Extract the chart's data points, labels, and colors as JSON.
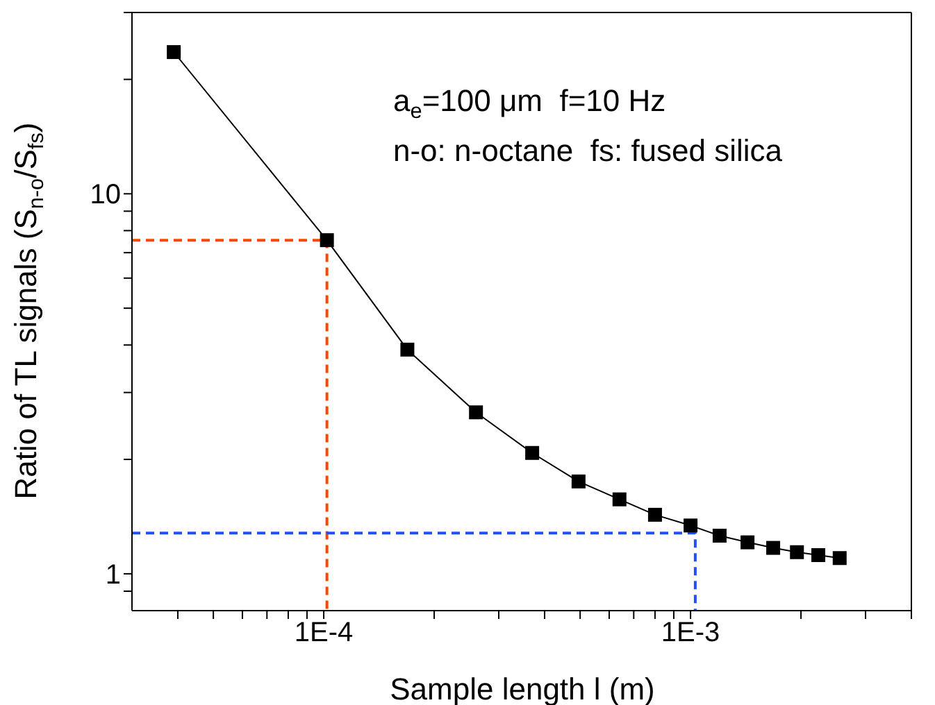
{
  "chart_data": {
    "type": "line",
    "log": "xy",
    "xlabel": "Sample length l (m)",
    "ylabel": "Ratio of TL signals (S$_{n-o}$/S$_{fs}$)",
    "annotations": [
      "a$_{e}$=100 μm  f=10 Hz",
      "n-o: n-octane  fs: fused silica"
    ],
    "xlim": [
      3e-05,
      0.004
    ],
    "ylim": [
      0.8,
      30
    ],
    "xticks": [
      {
        "value": 4e-05,
        "label": null
      },
      {
        "value": 5e-05,
        "label": null
      },
      {
        "value": 6e-05,
        "label": null
      },
      {
        "value": 7e-05,
        "label": null
      },
      {
        "value": 8e-05,
        "label": null
      },
      {
        "value": 9e-05,
        "label": null
      },
      {
        "value": 0.0001,
        "label": "1E-4"
      },
      {
        "value": 0.0002,
        "label": null
      },
      {
        "value": 0.0003,
        "label": null
      },
      {
        "value": 0.0004,
        "label": null
      },
      {
        "value": 0.0005,
        "label": null
      },
      {
        "value": 0.0006,
        "label": null
      },
      {
        "value": 0.0007,
        "label": null
      },
      {
        "value": 0.0008,
        "label": null
      },
      {
        "value": 0.0009,
        "label": null
      },
      {
        "value": 0.001,
        "label": "1E-3"
      },
      {
        "value": 0.002,
        "label": null
      },
      {
        "value": 0.003,
        "label": null
      },
      {
        "value": 0.004,
        "label": null
      }
    ],
    "yticks": [
      {
        "value": 0.9,
        "label": null
      },
      1,
      {
        "value": 2,
        "label": null
      },
      {
        "value": 3,
        "label": null
      },
      {
        "value": 4,
        "label": null
      },
      {
        "value": 5,
        "label": null
      },
      {
        "value": 6,
        "label": null
      },
      {
        "value": 7,
        "label": null
      },
      {
        "value": 8,
        "label": null
      },
      {
        "value": 9,
        "label": null
      },
      10,
      {
        "value": 20,
        "label": null
      },
      {
        "value": 30,
        "label": null
      }
    ],
    "series": [
      {
        "color": "#000000",
        "marker": "square",
        "line_style": "solid",
        "x": [
          3.9e-05,
          0.000102,
          0.000169,
          0.00026,
          0.00037,
          0.000495,
          0.00064,
          0.0008,
          0.001,
          0.0012,
          0.00143,
          0.00168,
          0.00195,
          0.00223,
          0.00255
        ],
        "values": [
          23.6,
          7.55,
          3.89,
          2.66,
          2.08,
          1.75,
          1.57,
          1.43,
          1.34,
          1.26,
          1.21,
          1.17,
          1.14,
          1.12,
          1.1
        ]
      },
      {
        "color": "#ff4500",
        "marker": "none",
        "line_style": "dashed",
        "x": [
          3e-05,
          0.000102,
          0.000102
        ],
        "values": [
          7.55,
          7.55,
          0.8
        ]
      },
      {
        "color": "#1e50ff",
        "marker": "none",
        "line_style": "dashed",
        "x": [
          3e-05,
          0.00103,
          0.00103
        ],
        "values": [
          1.28,
          1.28,
          0.8
        ]
      }
    ]
  }
}
